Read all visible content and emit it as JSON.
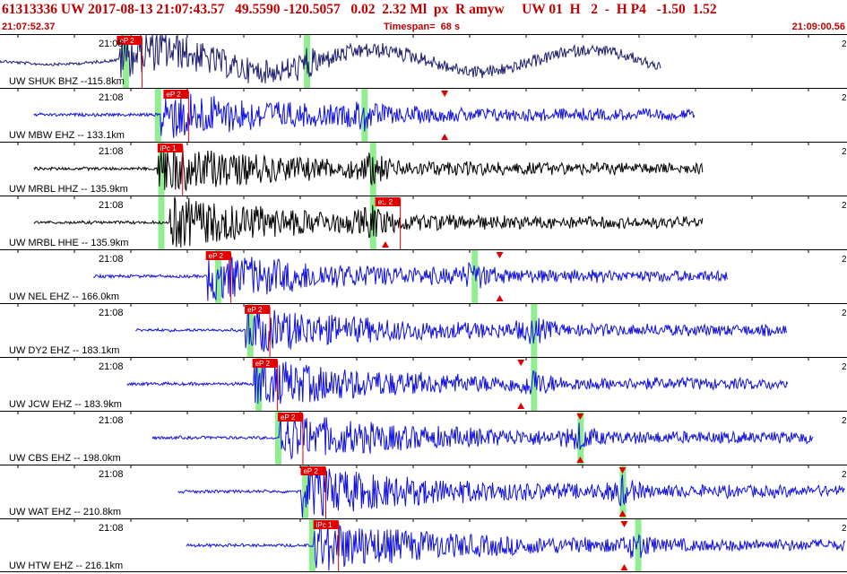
{
  "header": {
    "title": "61313336 UW 2017-08-13 21:07:43.57   49.5590 -120.5057   0.02  2.32 Ml  px  R amyw     UW 01  H   2  -  H P4   -1.50  1.52",
    "start_time": "21:07:52.37",
    "timespan": "Timespan=  68 s",
    "end_time": "21:09:00.56"
  },
  "colors": {
    "trace_blue": "#1010e0",
    "trace_black": "#000000",
    "trace_navy": "#1c1c70",
    "pick_red": "#e00000",
    "green_marker": "#90ee90",
    "text_red": "#c00000"
  },
  "channels": [
    {
      "label": "UW SHUK BHZ --115.8km",
      "time": "21:08",
      "right": "2",
      "pick": "eP 2",
      "color": "navy",
      "onset": 0.14,
      "pick_x": 0.138,
      "start": 0.0,
      "end": 0.78,
      "amp": 0.9,
      "greens": [
        0.148,
        0.362
      ],
      "arrows": []
    },
    {
      "label": "UW MBW EHZ -- 133.1km",
      "time": "21:08",
      "right": "2",
      "pick": "eP 2",
      "color": "blue",
      "onset": 0.19,
      "pick_x": 0.193,
      "start": 0.04,
      "end": 0.82,
      "amp": 0.95,
      "greens": [
        0.186,
        0.43
      ],
      "arrows": [
        0.525
      ]
    },
    {
      "label": "UW MRBL HHZ -- 135.9km",
      "time": "21:08",
      "right": "2",
      "pick": "iPc 1",
      "color": "black",
      "onset": 0.185,
      "pick_x": 0.186,
      "start": 0.04,
      "end": 0.83,
      "amp": 0.95,
      "greens": [
        0.19,
        0.44
      ],
      "arrows": []
    },
    {
      "label": "UW MRBL HHE -- 135.9km",
      "time": "21:08",
      "right": "2",
      "pick": "eS 2",
      "color": "black",
      "onset": 0.2,
      "pick_x": 0.443,
      "start": 0.04,
      "end": 0.83,
      "amp": 1.0,
      "greens": [
        0.19,
        0.44
      ],
      "arrows": [
        0.455
      ]
    },
    {
      "label": "UW NEL EHZ -- 166.0km",
      "time": "21:08",
      "right": "2",
      "pick": "eP 2",
      "color": "blue",
      "onset": 0.245,
      "pick_x": 0.243,
      "start": 0.11,
      "end": 0.86,
      "amp": 0.9,
      "greens": [
        0.257,
        0.56
      ],
      "arrows": [
        0.59
      ]
    },
    {
      "label": "UW DY2 EHZ -- 183.1km",
      "time": "21:08",
      "right": "2",
      "pick": "eP 2",
      "color": "blue",
      "onset": 0.29,
      "pick_x": 0.289,
      "start": 0.16,
      "end": 0.93,
      "amp": 0.85,
      "greens": [
        0.295,
        0.63
      ],
      "arrows": []
    },
    {
      "label": "UW JCW EHZ -- 183.9km",
      "time": "21:08",
      "right": "2",
      "pick": "eP 2",
      "color": "blue",
      "onset": 0.3,
      "pick_x": 0.298,
      "start": 0.15,
      "end": 0.93,
      "amp": 0.95,
      "greens": [
        0.305,
        0.63
      ],
      "arrows": [
        0.615
      ]
    },
    {
      "label": "UW CBS EHZ -- 198.0km",
      "time": "21:08",
      "right": "2",
      "pick": "eP 2",
      "color": "blue",
      "onset": 0.33,
      "pick_x": 0.328,
      "start": 0.18,
      "end": 0.96,
      "amp": 0.9,
      "greens": [
        0.328,
        0.685
      ],
      "arrows": [
        0.685
      ]
    },
    {
      "label": "UW WAT EHZ -- 210.8km",
      "time": "21:08",
      "right": "2",
      "pick": "eP 2",
      "color": "blue",
      "onset": 0.355,
      "pick_x": 0.355,
      "start": 0.21,
      "end": 1.0,
      "amp": 1.0,
      "greens": [
        0.36,
        0.735
      ],
      "arrows": [
        0.735
      ]
    },
    {
      "label": "UW HTW EHZ -- 216.1km",
      "time": "21:08",
      "right": "2",
      "pick": "iPc 1",
      "color": "blue",
      "onset": 0.37,
      "pick_x": 0.37,
      "start": 0.22,
      "end": 1.0,
      "amp": 1.0,
      "greens": [
        0.368,
        0.753
      ],
      "arrows": [
        0.737
      ]
    }
  ]
}
